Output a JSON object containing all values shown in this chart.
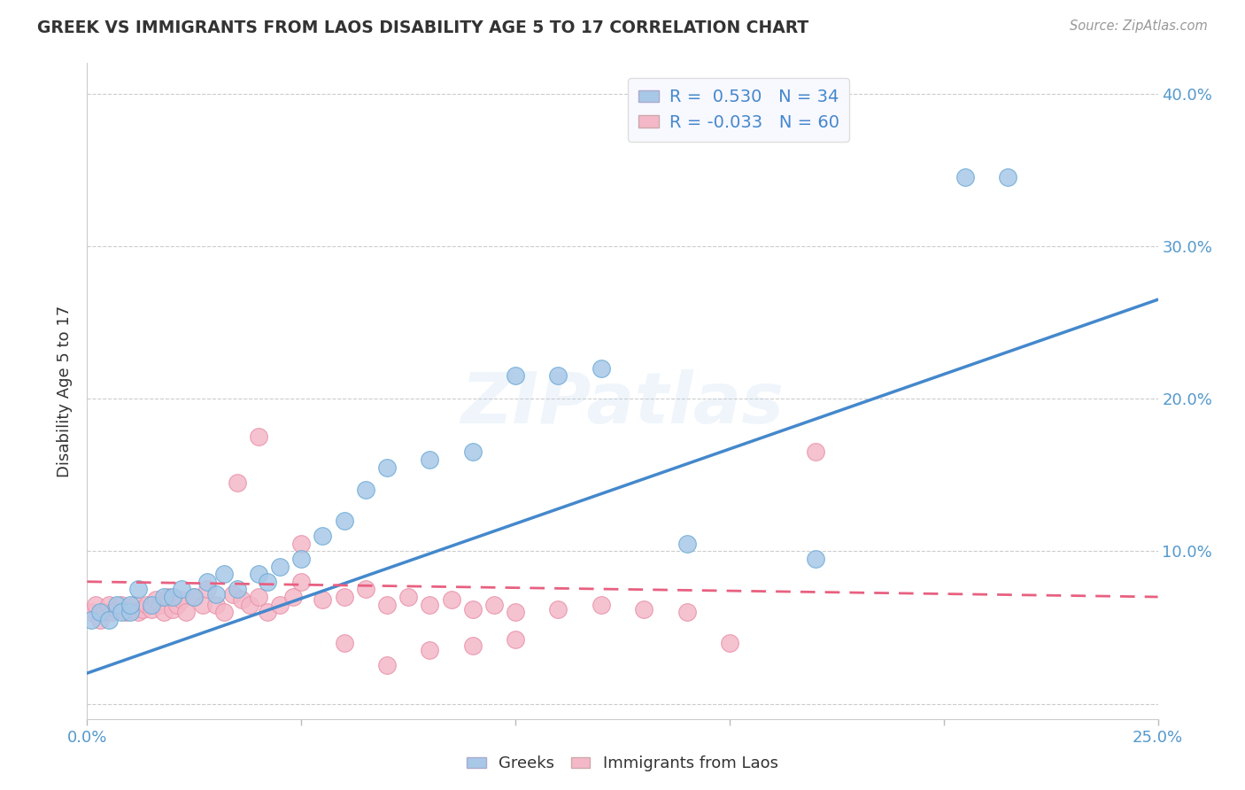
{
  "title": "GREEK VS IMMIGRANTS FROM LAOS DISABILITY AGE 5 TO 17 CORRELATION CHART",
  "source_text": "Source: ZipAtlas.com",
  "ylabel": "Disability Age 5 to 17",
  "xlim": [
    0.0,
    0.25
  ],
  "ylim": [
    -0.01,
    0.42
  ],
  "xticks": [
    0.0,
    0.05,
    0.1,
    0.15,
    0.2,
    0.25
  ],
  "yticks": [
    0.0,
    0.1,
    0.2,
    0.3,
    0.4
  ],
  "ytick_right_labels": [
    "",
    "10.0%",
    "20.0%",
    "30.0%",
    "40.0%"
  ],
  "xtick_labels": [
    "0.0%",
    "",
    "",
    "",
    "",
    "25.0%"
  ],
  "blue_r": 0.53,
  "blue_n": 34,
  "pink_r": -0.033,
  "pink_n": 60,
  "blue_color": "#a8c8e8",
  "pink_color": "#f4b8c8",
  "blue_edge_color": "#6aaad4",
  "pink_edge_color": "#e890a8",
  "blue_line_color": "#4488cc",
  "pink_line_color": "#e86080",
  "blue_scatter_x": [
    0.001,
    0.003,
    0.005,
    0.007,
    0.008,
    0.01,
    0.01,
    0.012,
    0.015,
    0.018,
    0.02,
    0.022,
    0.025,
    0.028,
    0.03,
    0.032,
    0.035,
    0.04,
    0.042,
    0.045,
    0.05,
    0.055,
    0.06,
    0.065,
    0.07,
    0.08,
    0.09,
    0.1,
    0.11,
    0.12,
    0.14,
    0.17,
    0.205,
    0.215
  ],
  "blue_scatter_y": [
    0.055,
    0.06,
    0.055,
    0.065,
    0.06,
    0.06,
    0.065,
    0.075,
    0.065,
    0.07,
    0.07,
    0.075,
    0.07,
    0.08,
    0.072,
    0.085,
    0.075,
    0.085,
    0.08,
    0.09,
    0.095,
    0.11,
    0.12,
    0.14,
    0.155,
    0.16,
    0.165,
    0.215,
    0.215,
    0.22,
    0.105,
    0.095,
    0.345,
    0.345
  ],
  "pink_scatter_x": [
    0.001,
    0.002,
    0.003,
    0.004,
    0.005,
    0.006,
    0.007,
    0.008,
    0.009,
    0.01,
    0.011,
    0.012,
    0.013,
    0.014,
    0.015,
    0.016,
    0.017,
    0.018,
    0.019,
    0.02,
    0.021,
    0.022,
    0.023,
    0.025,
    0.027,
    0.028,
    0.03,
    0.032,
    0.034,
    0.036,
    0.038,
    0.04,
    0.042,
    0.045,
    0.048,
    0.05,
    0.055,
    0.06,
    0.065,
    0.07,
    0.075,
    0.08,
    0.085,
    0.09,
    0.095,
    0.1,
    0.11,
    0.12,
    0.13,
    0.14,
    0.035,
    0.04,
    0.05,
    0.06,
    0.07,
    0.08,
    0.09,
    0.1,
    0.15,
    0.17
  ],
  "pink_scatter_y": [
    0.06,
    0.065,
    0.055,
    0.06,
    0.065,
    0.06,
    0.062,
    0.065,
    0.06,
    0.062,
    0.065,
    0.06,
    0.062,
    0.065,
    0.062,
    0.068,
    0.065,
    0.06,
    0.07,
    0.062,
    0.065,
    0.068,
    0.06,
    0.07,
    0.065,
    0.075,
    0.065,
    0.06,
    0.072,
    0.068,
    0.065,
    0.07,
    0.06,
    0.065,
    0.07,
    0.08,
    0.068,
    0.07,
    0.075,
    0.065,
    0.07,
    0.065,
    0.068,
    0.062,
    0.065,
    0.06,
    0.062,
    0.065,
    0.062,
    0.06,
    0.145,
    0.175,
    0.105,
    0.04,
    0.025,
    0.035,
    0.038,
    0.042,
    0.04,
    0.165
  ],
  "blue_trend_x": [
    0.0,
    0.25
  ],
  "blue_trend_y": [
    0.02,
    0.265
  ],
  "pink_trend_x": [
    0.0,
    0.25
  ],
  "pink_trend_y": [
    0.08,
    0.07
  ],
  "watermark_text": "ZIPatlas",
  "background_color": "#ffffff",
  "grid_color": "#cccccc",
  "title_color": "#333333",
  "axis_tick_color": "#5599cc",
  "legend_text_color": "#4488cc",
  "legend_box_color": "#f8f8ff"
}
